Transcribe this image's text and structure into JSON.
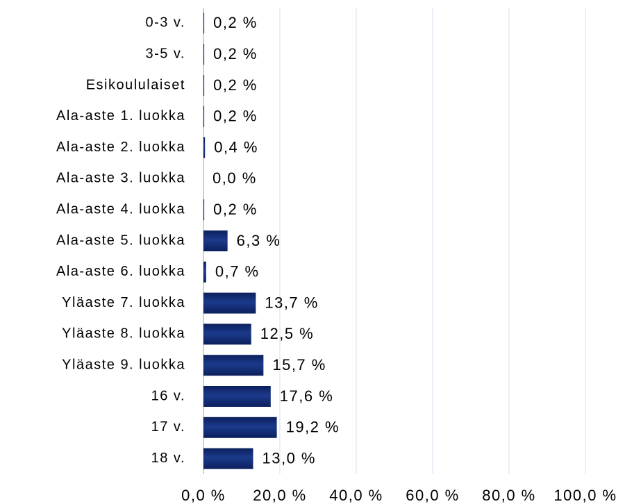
{
  "chart_data": {
    "type": "barh",
    "categories": [
      "0-3 v.",
      "3-5 v.",
      "Esikoululaiset",
      "Ala-aste 1. luokka",
      "Ala-aste 2. luokka",
      "Ala-aste 3. luokka",
      "Ala-aste 4. luokka",
      "Ala-aste 5. luokka",
      "Ala-aste 6. luokka",
      "Yläaste 7. luokka",
      "Yläaste 8. luokka",
      "Yläaste 9. luokka",
      "16 v.",
      "17 v.",
      "18 v."
    ],
    "values": [
      0.2,
      0.2,
      0.2,
      0.2,
      0.4,
      0.0,
      0.2,
      6.3,
      0.7,
      13.7,
      12.5,
      15.7,
      17.6,
      19.2,
      13.0
    ],
    "value_labels": [
      "0,2 %",
      "0,2 %",
      "0,2 %",
      "0,2 %",
      "0,4 %",
      "0,0 %",
      "0,2 %",
      "6,3 %",
      "0,7 %",
      "13,7 %",
      "12,5 %",
      "15,7 %",
      "17,6 %",
      "19,2 %",
      "13,0 %"
    ],
    "color": "#1c3a8c",
    "xlim": [
      0,
      100
    ],
    "xticks": [
      {
        "value": 0,
        "label": "0,0 %"
      },
      {
        "value": 20,
        "label": "20,0 %"
      },
      {
        "value": 40,
        "label": "40,0 %"
      },
      {
        "value": 60,
        "label": "60,0 %"
      },
      {
        "value": 80,
        "label": "80,0 %"
      },
      {
        "value": 100,
        "label": "100,0 %"
      }
    ],
    "grid": true
  }
}
